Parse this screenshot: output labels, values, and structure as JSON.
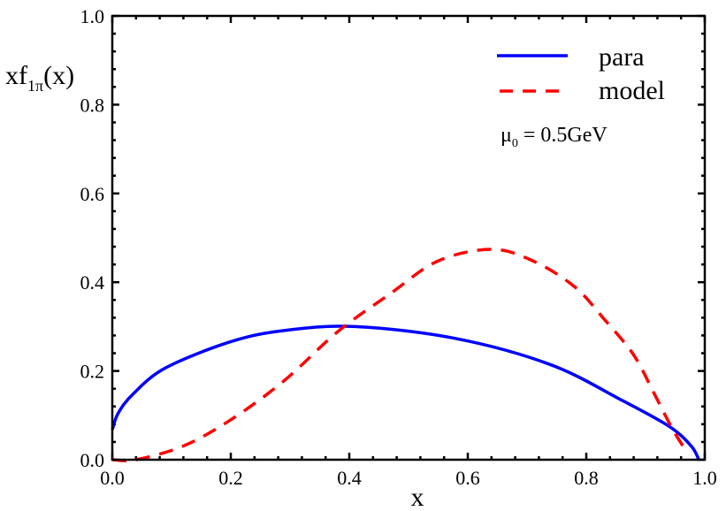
{
  "chart_data": {
    "type": "line",
    "title": "",
    "xlabel": "x",
    "ylabel_main": "xf",
    "ylabel_sub": "1π",
    "ylabel_tail": "(x)",
    "xlim": [
      0.0,
      1.0
    ],
    "ylim": [
      0.0,
      1.0
    ],
    "xticks": [
      "0.0",
      "0.2",
      "0.4",
      "0.6",
      "0.8",
      "1.0"
    ],
    "yticks": [
      "0.0",
      "0.2",
      "0.4",
      "0.6",
      "0.8",
      "1.0"
    ],
    "grid": false,
    "legend_position": "top-right",
    "annotation": {
      "mu": "μ",
      "sub": "0",
      "text": " = 0.5GeV"
    },
    "series": [
      {
        "name": "para",
        "color": "#0000ff",
        "style": "solid",
        "x": [
          0.0,
          0.01,
          0.035,
          0.09,
          0.2,
          0.29,
          0.41,
          0.58,
          0.74,
          0.86,
          0.94,
          0.977,
          0.99
        ],
        "y": [
          0.068,
          0.105,
          0.148,
          0.207,
          0.266,
          0.291,
          0.3,
          0.273,
          0.214,
          0.134,
          0.075,
          0.031,
          0.0
        ]
      },
      {
        "name": "model",
        "color": "#ff0000",
        "style": "dashed",
        "x": [
          0.0,
          0.04,
          0.12,
          0.2,
          0.29,
          0.38,
          0.47,
          0.55,
          0.64,
          0.71,
          0.78,
          0.83,
          0.88,
          0.915,
          0.946,
          0.97
        ],
        "y": [
          0.0,
          0.0,
          0.031,
          0.09,
          0.178,
          0.288,
          0.375,
          0.448,
          0.474,
          0.448,
          0.39,
          0.317,
          0.236,
          0.148,
          0.068,
          0.017
        ]
      }
    ]
  }
}
